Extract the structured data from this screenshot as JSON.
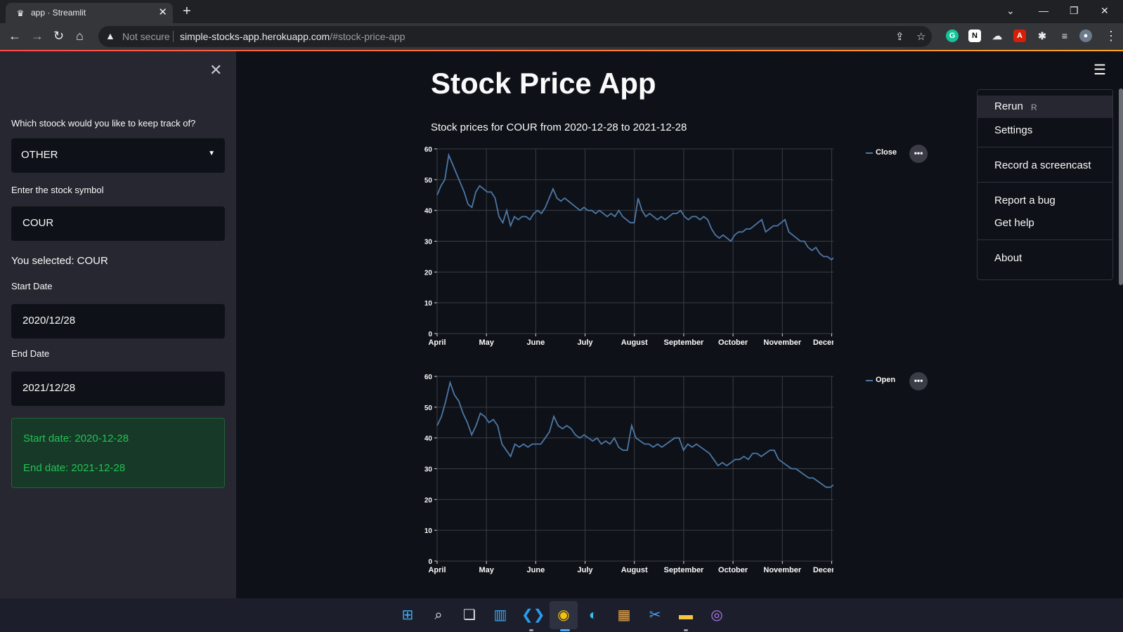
{
  "browser": {
    "tab_title": "app · Streamlit",
    "not_secure": "Not secure",
    "url_host": "simple-stocks-app.herokuapp.com",
    "url_path": "/#stock-price-app"
  },
  "sidebar": {
    "stock_question": "Which stoock would you like to keep track of?",
    "stock_select_value": "OTHER",
    "symbol_label": "Enter the stock symbol",
    "symbol_value": "COUR",
    "selected_message": "You selected: COUR",
    "start_label": "Start Date",
    "start_value": "2020/12/28",
    "end_label": "End Date",
    "end_value": "2021/12/28",
    "success_start": "Start date: 2020-12-28",
    "success_end": "End date: 2021-12-28"
  },
  "main": {
    "title": "Stock Price App",
    "subtitle": "Stock prices for COUR from 2020-12-28 to 2021-12-28"
  },
  "menu": {
    "rerun": "Rerun",
    "rerun_key": "R",
    "settings": "Settings",
    "record": "Record a screencast",
    "report": "Report a bug",
    "help": "Get help",
    "about": "About"
  },
  "colors": {
    "line": "#4c78a8",
    "success_text": "#21c354",
    "accent": "#ff4b4b"
  },
  "chart_data": [
    {
      "type": "line",
      "series": [
        {
          "name": "Close",
          "values": [
            45,
            48,
            50,
            58,
            55,
            52,
            49,
            46,
            42,
            41,
            46,
            48,
            47,
            46,
            46,
            44,
            38,
            36,
            40,
            35,
            38,
            37,
            38,
            38,
            37,
            39,
            40,
            39,
            41,
            44,
            47,
            44,
            43,
            44,
            43,
            42,
            41,
            40,
            41,
            40,
            40,
            39,
            40,
            39,
            38,
            39,
            38,
            40,
            38,
            37,
            36,
            36,
            44,
            40,
            38,
            39,
            38,
            37,
            38,
            37,
            38,
            39,
            39,
            40,
            38,
            37,
            38,
            38,
            37,
            38,
            37,
            34,
            32,
            31,
            32,
            31,
            30,
            32,
            33,
            33,
            34,
            34,
            35,
            36,
            37,
            33,
            34,
            35,
            35,
            36,
            37,
            33,
            32,
            31,
            30,
            30,
            28,
            27,
            28,
            26,
            25,
            25,
            24,
            25,
            25
          ]
        }
      ],
      "x_tick_labels": [
        "April",
        "May",
        "June",
        "July",
        "August",
        "September",
        "October",
        "November",
        "December"
      ],
      "y_ticks": [
        0,
        10,
        20,
        30,
        40,
        50,
        60
      ],
      "ylim": [
        0,
        60
      ],
      "legend": "top-right",
      "grid": true
    },
    {
      "type": "line",
      "series": [
        {
          "name": "Open",
          "values": [
            44,
            47,
            52,
            58,
            54,
            52,
            48,
            45,
            41,
            44,
            48,
            47,
            45,
            46,
            44,
            38,
            36,
            34,
            38,
            37,
            38,
            37,
            38,
            38,
            38,
            40,
            42,
            47,
            44,
            43,
            44,
            43,
            41,
            40,
            41,
            40,
            39,
            40,
            38,
            39,
            38,
            40,
            37,
            36,
            36,
            44,
            40,
            39,
            38,
            38,
            37,
            38,
            37,
            38,
            39,
            40,
            40,
            36,
            38,
            37,
            38,
            37,
            36,
            35,
            33,
            31,
            32,
            31,
            32,
            33,
            33,
            34,
            33,
            35,
            35,
            34,
            35,
            36,
            36,
            33,
            32,
            31,
            30,
            30,
            29,
            28,
            27,
            27,
            26,
            25,
            24,
            24,
            25,
            25
          ]
        }
      ],
      "x_tick_labels": [
        "April",
        "May",
        "June",
        "July",
        "August",
        "September",
        "October",
        "November",
        "December"
      ],
      "y_ticks": [
        0,
        10,
        20,
        30,
        40,
        50,
        60
      ],
      "ylim": [
        0,
        60
      ],
      "legend": "top-right",
      "grid": true
    }
  ]
}
